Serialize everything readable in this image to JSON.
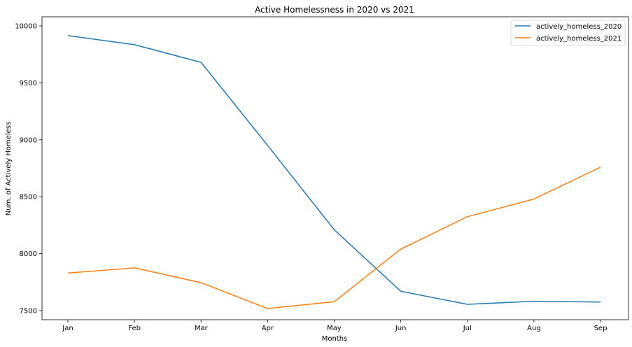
{
  "chart_data": {
    "type": "line",
    "title": "Active Homelessness in 2020 vs 2021",
    "xlabel": "Months",
    "ylabel": "Num. of Actively Homeless",
    "categories": [
      "Jan",
      "Feb",
      "Mar",
      "Apr",
      "May",
      "Jun",
      "Jul",
      "Aug",
      "Sep"
    ],
    "ylim": [
      7420,
      10080
    ],
    "yticks": [
      7500,
      8000,
      8500,
      9000,
      9500,
      10000
    ],
    "grid": false,
    "legend_position": "top-right",
    "series": [
      {
        "name": "actively_homeless_2020",
        "color": "#1f77b4",
        "values": [
          9915,
          9835,
          9680,
          8950,
          8210,
          7670,
          7555,
          7582,
          7575
        ]
      },
      {
        "name": "actively_homeless_2021",
        "color": "#ff7f0e",
        "values": [
          7830,
          7875,
          7745,
          7518,
          7578,
          8040,
          8325,
          8480,
          8760
        ]
      }
    ]
  }
}
